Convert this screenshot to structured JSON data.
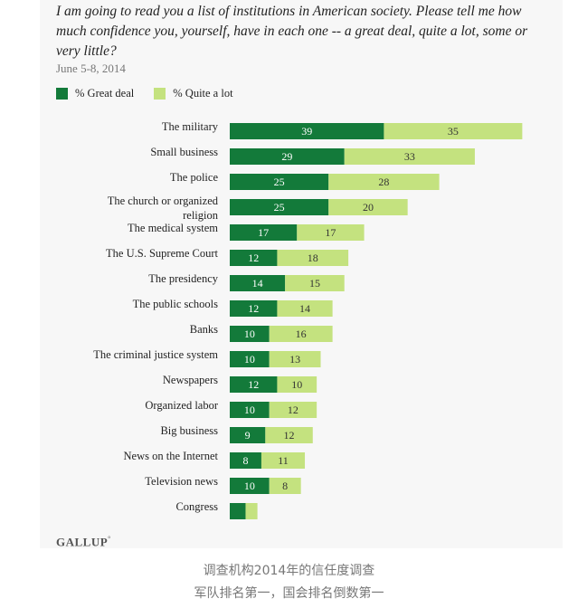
{
  "question": "I am going to read you a list of institutions in American society. Please tell me how much confidence you, yourself, have in each one -- a great deal, quite a lot, some or very little?",
  "date": "June 5-8, 2014",
  "source": "GALLUP",
  "source_mark": "°",
  "captions": [
    "调查机构2014年的信任度调查",
    "军队排名第一，国会排名倒数第一"
  ],
  "colors": {
    "great_deal": "#137a3a",
    "quite_a_lot": "#c4e27f",
    "label_on_dark": "#ffffff",
    "label_on_light": "#333333"
  },
  "chart_data": {
    "type": "bar",
    "orientation": "horizontal",
    "stacked": true,
    "categories": [
      "The military",
      "Small business",
      "The police",
      "The church or organized religion",
      "The medical system",
      "The U.S. Supreme Court",
      "The presidency",
      "The public schools",
      "Banks",
      "The criminal justice system",
      "Newspapers",
      "Organized labor",
      "Big business",
      "News on the Internet",
      "Television news",
      "Congress"
    ],
    "series": [
      {
        "name": "% Great deal",
        "values": [
          39,
          29,
          25,
          25,
          17,
          12,
          14,
          12,
          10,
          10,
          12,
          10,
          9,
          8,
          10,
          4
        ]
      },
      {
        "name": "% Quite a lot",
        "values": [
          35,
          33,
          28,
          20,
          17,
          18,
          15,
          14,
          16,
          13,
          10,
          12,
          12,
          11,
          8,
          3
        ]
      }
    ],
    "hidden_value_labels": [
      [
        15
      ],
      [
        15
      ]
    ],
    "xlim": [
      0,
      100
    ],
    "title": "",
    "xlabel": "",
    "ylabel": ""
  }
}
